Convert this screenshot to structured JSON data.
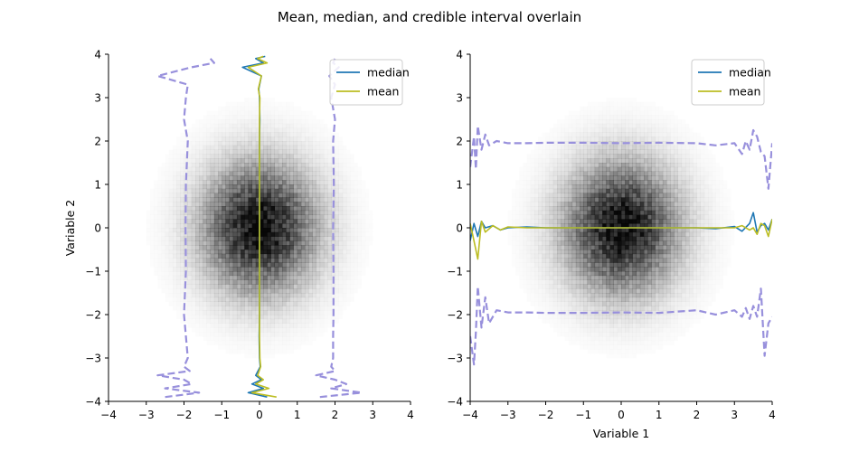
{
  "figure": {
    "suptitle": "Mean, median, and credible interval overlain"
  },
  "colors": {
    "median": "#1f77b4",
    "mean": "#bcbd22",
    "interval": "#9890dc",
    "density": "#000000"
  },
  "chart_data": [
    {
      "type": "heatmap",
      "panel": "left",
      "title": "",
      "xlabel": "",
      "ylabel": "Variable 2",
      "xlim": [
        -4,
        4
      ],
      "ylim": [
        -4,
        4
      ],
      "xticks": [
        "−4",
        "−3",
        "−2",
        "−1",
        "0",
        "1",
        "2",
        "3",
        "4"
      ],
      "yticks": [
        "−4",
        "−3",
        "−2",
        "−1",
        "0",
        "1",
        "2",
        "3",
        "4"
      ],
      "grid": false,
      "legend": {
        "placement": "top-right",
        "entries": [
          "median",
          "mean"
        ]
      },
      "density": {
        "center": [
          0,
          0
        ],
        "sigma": [
          1.0,
          1.0
        ],
        "description": "2D standard normal histogram"
      },
      "orientation": "curves vs Variable 2",
      "series": [
        {
          "name": "median",
          "y": [
            -3.9,
            -3.8,
            -3.7,
            -3.6,
            -3.5,
            -3.4,
            -3.2,
            -3.0,
            -2.5,
            -2.0,
            -1.0,
            0.0,
            1.0,
            2.0,
            2.5,
            3.0,
            3.2,
            3.5,
            3.7,
            3.8,
            3.9,
            3.95
          ],
          "x": [
            0.2,
            -0.3,
            0.1,
            -0.2,
            0.05,
            -0.1,
            0.02,
            0.0,
            -0.01,
            0.0,
            0.0,
            0.0,
            0.0,
            0.0,
            0.01,
            0.0,
            -0.02,
            0.05,
            -0.45,
            0.1,
            -0.1,
            0.15
          ]
        },
        {
          "name": "mean",
          "y": [
            -3.9,
            -3.8,
            -3.7,
            -3.6,
            -3.5,
            -3.4,
            -3.2,
            -3.0,
            -2.5,
            -2.0,
            -1.0,
            0.0,
            1.0,
            2.0,
            2.5,
            3.0,
            3.2,
            3.5,
            3.7,
            3.8,
            3.9,
            3.95
          ],
          "x": [
            0.45,
            -0.2,
            0.25,
            -0.1,
            0.1,
            -0.05,
            0.03,
            0.01,
            0.0,
            0.0,
            0.0,
            0.0,
            0.0,
            0.0,
            0.0,
            0.01,
            -0.03,
            0.05,
            -0.3,
            0.2,
            -0.05,
            0.1
          ]
        },
        {
          "name": "interval lower",
          "y": [
            -3.9,
            -3.8,
            -3.7,
            -3.6,
            -3.5,
            -3.4,
            -3.3,
            -3.2,
            -3.0,
            -2.5,
            -2.0,
            -1.0,
            0.0,
            1.0,
            2.0,
            2.5,
            3.0,
            3.3,
            3.5,
            3.7,
            3.8,
            3.9
          ],
          "x": [
            -2.5,
            -1.6,
            -2.5,
            -1.8,
            -2.0,
            -2.7,
            -1.85,
            -2.0,
            -1.9,
            -1.95,
            -2.0,
            -1.95,
            -1.96,
            -1.95,
            -1.9,
            -2.0,
            -1.95,
            -1.9,
            -2.7,
            -1.8,
            -1.2,
            -1.3
          ]
        },
        {
          "name": "interval upper",
          "y": [
            -3.9,
            -3.8,
            -3.7,
            -3.6,
            -3.5,
            -3.4,
            -3.3,
            -3.2,
            -3.0,
            -2.5,
            -2.0,
            -1.0,
            0.0,
            1.0,
            2.0,
            2.5,
            3.0,
            3.3,
            3.5,
            3.7,
            3.8,
            3.9
          ],
          "x": [
            1.6,
            2.7,
            1.9,
            2.3,
            2.0,
            1.5,
            2.0,
            1.9,
            1.95,
            1.95,
            1.96,
            1.96,
            1.95,
            1.97,
            1.95,
            2.0,
            1.9,
            2.0,
            1.85,
            2.1,
            1.95,
            2.0
          ]
        }
      ]
    },
    {
      "type": "heatmap",
      "panel": "right",
      "title": "",
      "xlabel": "Variable 1",
      "ylabel": "",
      "xlim": [
        -4,
        4
      ],
      "ylim": [
        -4,
        4
      ],
      "xticks": [
        "−4",
        "−3",
        "−2",
        "−1",
        "0",
        "1",
        "2",
        "3",
        "4"
      ],
      "yticks": [
        "−4",
        "−3",
        "−2",
        "−1",
        "0",
        "1",
        "2",
        "3",
        "4"
      ],
      "grid": false,
      "legend": {
        "placement": "top-right",
        "entries": [
          "median",
          "mean"
        ]
      },
      "density": {
        "center": [
          0,
          0
        ],
        "sigma": [
          1.0,
          1.0
        ],
        "description": "2D standard normal histogram"
      },
      "orientation": "curves vs Variable 1",
      "series": [
        {
          "name": "median",
          "x": [
            -4.0,
            -3.9,
            -3.8,
            -3.7,
            -3.6,
            -3.4,
            -3.2,
            -3.0,
            -2.5,
            -2.0,
            -1.0,
            0.0,
            1.0,
            2.0,
            2.5,
            3.0,
            3.2,
            3.4,
            3.5,
            3.6,
            3.7,
            3.8,
            3.9,
            4.0
          ],
          "y": [
            -0.3,
            0.1,
            -0.2,
            0.15,
            0.0,
            0.05,
            -0.05,
            0.0,
            0.02,
            0.0,
            0.0,
            0.0,
            0.0,
            0.0,
            -0.02,
            0.03,
            -0.08,
            0.1,
            0.35,
            -0.1,
            0.05,
            0.1,
            -0.05,
            0.2
          ]
        },
        {
          "name": "mean",
          "x": [
            -4.0,
            -3.9,
            -3.8,
            -3.7,
            -3.6,
            -3.4,
            -3.2,
            -3.0,
            -2.5,
            -2.0,
            -1.0,
            0.0,
            1.0,
            2.0,
            2.5,
            3.0,
            3.2,
            3.4,
            3.5,
            3.6,
            3.7,
            3.8,
            3.9,
            4.0
          ],
          "y": [
            0.1,
            -0.3,
            -0.72,
            0.15,
            -0.1,
            0.05,
            -0.05,
            0.02,
            0.0,
            0.0,
            0.0,
            0.0,
            0.0,
            0.0,
            0.0,
            0.0,
            0.05,
            -0.05,
            0.0,
            -0.15,
            0.1,
            0.05,
            -0.2,
            0.2
          ]
        },
        {
          "name": "interval upper",
          "x": [
            -4.0,
            -3.9,
            -3.85,
            -3.8,
            -3.7,
            -3.6,
            -3.5,
            -3.3,
            -3.0,
            -2.5,
            -2.0,
            -1.0,
            0.0,
            1.0,
            2.0,
            2.5,
            3.0,
            3.2,
            3.3,
            3.4,
            3.5,
            3.6,
            3.7,
            3.8,
            3.9,
            4.0
          ],
          "y": [
            1.4,
            2.1,
            1.35,
            2.35,
            1.8,
            2.15,
            1.9,
            2.0,
            1.95,
            1.95,
            1.96,
            1.96,
            1.95,
            1.96,
            1.95,
            1.9,
            1.95,
            1.7,
            2.0,
            1.8,
            2.25,
            2.1,
            1.75,
            1.65,
            0.9,
            1.95
          ]
        },
        {
          "name": "interval lower",
          "x": [
            -4.0,
            -3.9,
            -3.85,
            -3.8,
            -3.7,
            -3.6,
            -3.5,
            -3.3,
            -3.0,
            -2.5,
            -2.0,
            -1.0,
            0.0,
            1.0,
            2.0,
            2.5,
            3.0,
            3.2,
            3.3,
            3.4,
            3.5,
            3.6,
            3.7,
            3.8,
            3.9,
            4.0
          ],
          "y": [
            -2.5,
            -3.15,
            -2.4,
            -1.35,
            -2.3,
            -1.6,
            -2.2,
            -1.9,
            -1.95,
            -1.95,
            -1.96,
            -1.96,
            -1.95,
            -1.96,
            -1.9,
            -2.0,
            -1.9,
            -2.05,
            -1.85,
            -2.1,
            -1.8,
            -2.05,
            -1.4,
            -2.95,
            -2.2,
            -2.05
          ]
        }
      ]
    }
  ]
}
